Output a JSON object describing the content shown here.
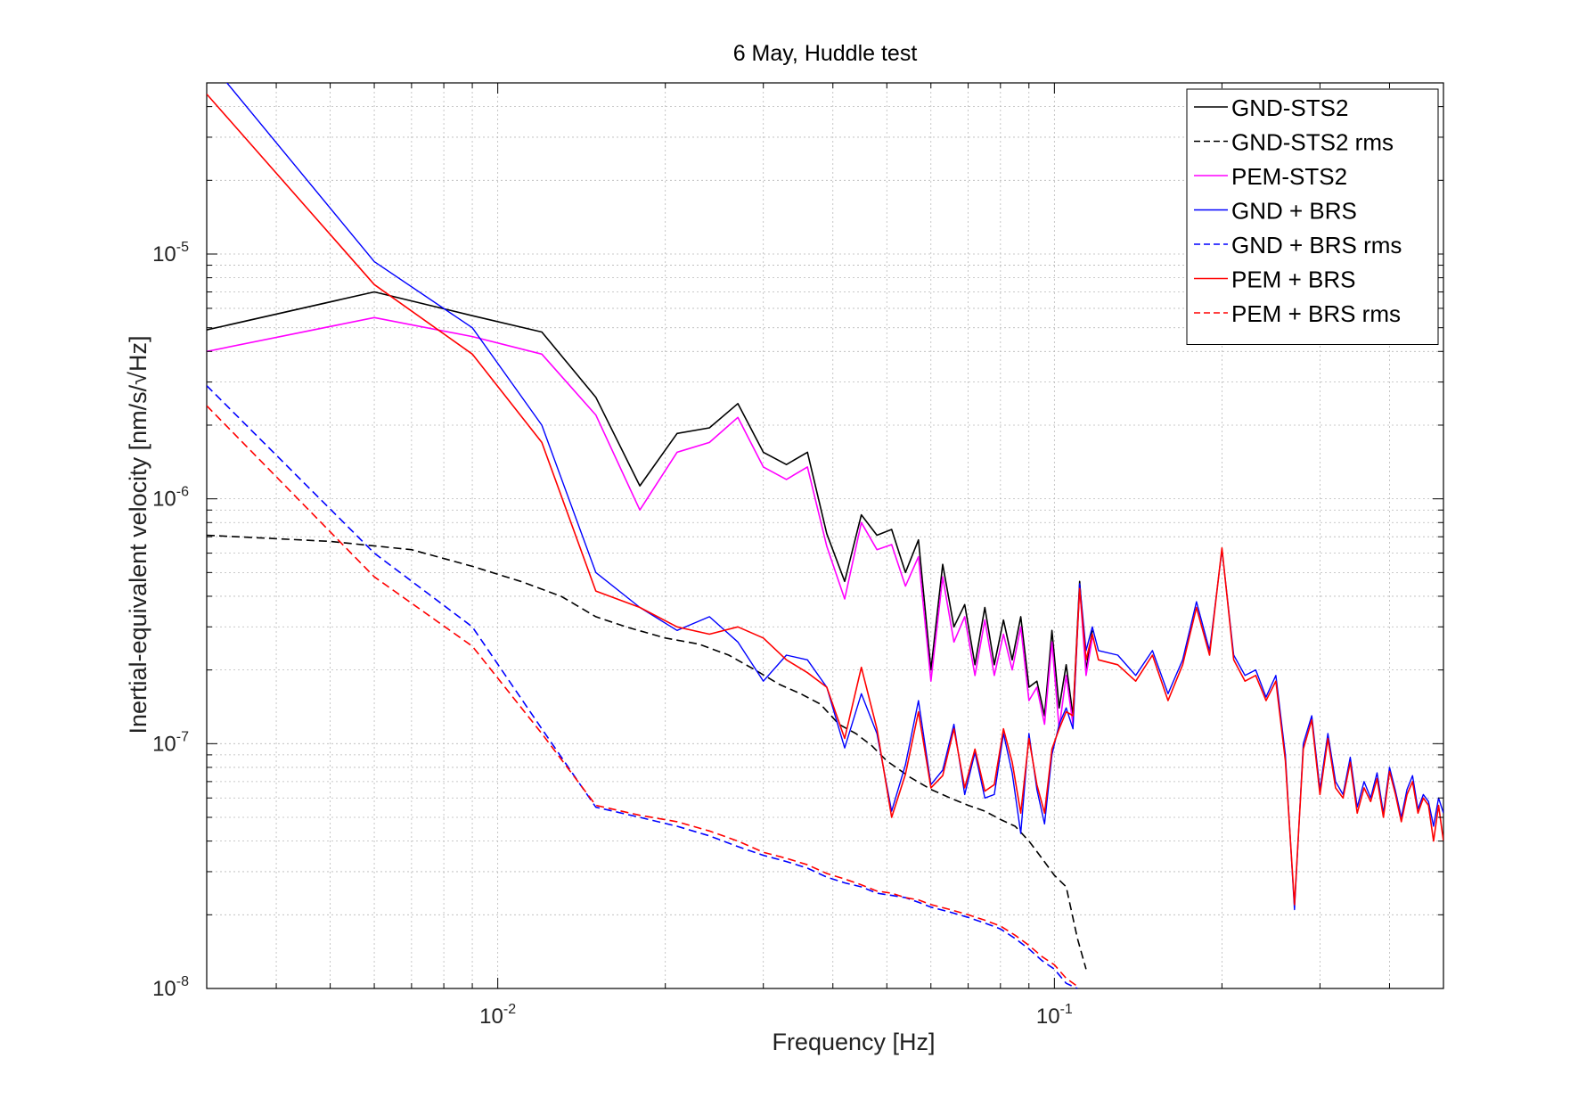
{
  "chart_data": {
    "type": "line",
    "title": "6 May, Huddle test",
    "xlabel": "Frequency [Hz]",
    "ylabel": "Inertial-equivalent velocity [nm/s/√Hz]",
    "xscale": "log",
    "yscale": "log",
    "xlim": [
      0.003,
      0.5
    ],
    "ylim": [
      1e-08,
      5e-05
    ],
    "grid": true,
    "legend_position": "top-right",
    "x_ticks": [
      {
        "value": 0.01,
        "base": "10",
        "exp": "-2"
      },
      {
        "value": 0.1,
        "base": "10",
        "exp": "-1"
      }
    ],
    "y_ticks": [
      {
        "value": 1e-08,
        "base": "10",
        "exp": "-8"
      },
      {
        "value": 1e-07,
        "base": "10",
        "exp": "-7"
      },
      {
        "value": 1e-06,
        "base": "10",
        "exp": "-6"
      },
      {
        "value": 1e-05,
        "base": "10",
        "exp": "-5"
      }
    ],
    "series": [
      {
        "name": "GND-STS2",
        "color": "#000000",
        "dash": "solid",
        "width": 1.6,
        "x": [
          0.003,
          0.006,
          0.009,
          0.012,
          0.015,
          0.018,
          0.021,
          0.024,
          0.027,
          0.03,
          0.033,
          0.036,
          0.039,
          0.042,
          0.045,
          0.048,
          0.051,
          0.054,
          0.057,
          0.06,
          0.063,
          0.066,
          0.069,
          0.072,
          0.075,
          0.078,
          0.081,
          0.084,
          0.087,
          0.09,
          0.093,
          0.096,
          0.099,
          0.102,
          0.105,
          0.108,
          0.111,
          0.114,
          0.117
        ],
        "y": [
          4.9e-06,
          7e-06,
          5.6e-06,
          4.8e-06,
          2.6e-06,
          1.13e-06,
          1.85e-06,
          1.95e-06,
          2.45e-06,
          1.55e-06,
          1.38e-06,
          1.55e-06,
          7.2e-07,
          4.6e-07,
          8.6e-07,
          7.1e-07,
          7.5e-07,
          5e-07,
          6.8e-07,
          2e-07,
          5.4e-07,
          3e-07,
          3.7e-07,
          2.1e-07,
          3.6e-07,
          2.1e-07,
          3.2e-07,
          2.2e-07,
          3.3e-07,
          1.7e-07,
          1.8e-07,
          1.3e-07,
          2.9e-07,
          1.4e-07,
          2.1e-07,
          1.3e-07,
          4.6e-07,
          2e-07,
          2.9e-07
        ]
      },
      {
        "name": "GND-STS2 rms",
        "color": "#000000",
        "dash": "dashed",
        "width": 1.6,
        "x": [
          0.003,
          0.005,
          0.007,
          0.009,
          0.011,
          0.013,
          0.015,
          0.017,
          0.02,
          0.023,
          0.026,
          0.029,
          0.032,
          0.035,
          0.038,
          0.041,
          0.044,
          0.047,
          0.05,
          0.055,
          0.06,
          0.065,
          0.07,
          0.075,
          0.08,
          0.085,
          0.09,
          0.095,
          0.1,
          0.105,
          0.11,
          0.114
        ],
        "y": [
          7.1e-07,
          6.7e-07,
          6.2e-07,
          5.3e-07,
          4.6e-07,
          4e-07,
          3.3e-07,
          3e-07,
          2.7e-07,
          2.55e-07,
          2.3e-07,
          2e-07,
          1.75e-07,
          1.6e-07,
          1.45e-07,
          1.2e-07,
          1.1e-07,
          9.8e-08,
          8.5e-08,
          7.3e-08,
          6.5e-08,
          6e-08,
          5.6e-08,
          5.3e-08,
          4.9e-08,
          4.6e-08,
          4e-08,
          3.4e-08,
          2.9e-08,
          2.6e-08,
          1.6e-08,
          1.2e-08
        ]
      },
      {
        "name": "PEM-STS2",
        "color": "#ff00ff",
        "dash": "solid",
        "width": 1.6,
        "x": [
          0.003,
          0.006,
          0.009,
          0.012,
          0.015,
          0.018,
          0.021,
          0.024,
          0.027,
          0.03,
          0.033,
          0.036,
          0.039,
          0.042,
          0.045,
          0.048,
          0.051,
          0.054,
          0.057,
          0.06,
          0.063,
          0.066,
          0.069,
          0.072,
          0.075,
          0.078,
          0.081,
          0.084,
          0.087,
          0.09,
          0.093,
          0.096,
          0.099,
          0.102,
          0.105,
          0.108,
          0.111,
          0.114,
          0.117
        ],
        "y": [
          4e-06,
          5.5e-06,
          4.6e-06,
          3.9e-06,
          2.2e-06,
          9e-07,
          1.55e-06,
          1.7e-06,
          2.15e-06,
          1.35e-06,
          1.2e-06,
          1.35e-06,
          6.4e-07,
          3.9e-07,
          8e-07,
          6.2e-07,
          6.5e-07,
          4.4e-07,
          5.8e-07,
          1.8e-07,
          4.8e-07,
          2.6e-07,
          3.3e-07,
          1.9e-07,
          3.2e-07,
          1.9e-07,
          2.8e-07,
          2e-07,
          3e-07,
          1.5e-07,
          1.7e-07,
          1.2e-07,
          2.6e-07,
          1.15e-07,
          1.9e-07,
          1.2e-07,
          4.4e-07,
          1.9e-07,
          2.7e-07
        ]
      },
      {
        "name": "GND + BRS",
        "color": "#0000ff",
        "dash": "solid",
        "width": 1.4,
        "x": [
          0.003,
          0.006,
          0.009,
          0.012,
          0.015,
          0.018,
          0.021,
          0.024,
          0.027,
          0.03,
          0.033,
          0.036,
          0.039,
          0.042,
          0.045,
          0.048,
          0.051,
          0.054,
          0.057,
          0.06,
          0.063,
          0.066,
          0.069,
          0.072,
          0.075,
          0.078,
          0.081,
          0.084,
          0.087,
          0.09,
          0.093,
          0.096,
          0.099,
          0.102,
          0.105,
          0.108,
          0.111,
          0.114,
          0.117,
          0.12,
          0.13,
          0.14,
          0.15,
          0.16,
          0.17,
          0.18,
          0.19,
          0.2,
          0.21,
          0.22,
          0.23,
          0.24,
          0.25,
          0.26,
          0.27,
          0.28,
          0.29,
          0.3,
          0.31,
          0.32,
          0.33,
          0.34,
          0.35,
          0.36,
          0.37,
          0.38,
          0.39,
          0.4,
          0.41,
          0.42,
          0.43,
          0.44,
          0.45,
          0.46,
          0.47,
          0.48,
          0.49,
          0.5
        ],
        "y": [
          6.3e-05,
          9.3e-06,
          5e-06,
          2e-06,
          5e-07,
          3.6e-07,
          2.9e-07,
          3.3e-07,
          2.6e-07,
          1.8e-07,
          2.3e-07,
          2.2e-07,
          1.7e-07,
          9.6e-08,
          1.6e-07,
          1.1e-07,
          5.3e-08,
          8.2e-08,
          1.5e-07,
          6.8e-08,
          7.8e-08,
          1.2e-07,
          6.2e-08,
          9.2e-08,
          6e-08,
          6.2e-08,
          1.1e-07,
          7.6e-08,
          4.3e-08,
          1.1e-07,
          6.5e-08,
          4.7e-08,
          9e-08,
          1.2e-07,
          1.4e-07,
          1.15e-07,
          4.5e-07,
          2.4e-07,
          3e-07,
          2.4e-07,
          2.3e-07,
          1.9e-07,
          2.4e-07,
          1.6e-07,
          2.2e-07,
          3.8e-07,
          2.4e-07,
          6.2e-07,
          2.3e-07,
          1.9e-07,
          2e-07,
          1.55e-07,
          1.9e-07,
          9e-08,
          2.1e-08,
          1e-07,
          1.3e-07,
          6.5e-08,
          1.1e-07,
          7e-08,
          6.2e-08,
          8.8e-08,
          5.5e-08,
          7e-08,
          6e-08,
          7.6e-08,
          5.2e-08,
          8e-08,
          6.4e-08,
          5e-08,
          6.5e-08,
          7.4e-08,
          5.4e-08,
          6.2e-08,
          5.8e-08,
          4.6e-08,
          6e-08,
          5.2e-08
        ]
      },
      {
        "name": "GND + BRS rms",
        "color": "#0000ff",
        "dash": "dashed",
        "width": 1.6,
        "x": [
          0.003,
          0.006,
          0.009,
          0.012,
          0.015,
          0.018,
          0.021,
          0.024,
          0.027,
          0.03,
          0.033,
          0.036,
          0.039,
          0.042,
          0.045,
          0.048,
          0.051,
          0.054,
          0.057,
          0.06,
          0.065,
          0.07,
          0.075,
          0.08,
          0.085,
          0.09,
          0.095,
          0.1,
          0.105,
          0.11
        ],
        "y": [
          2.9e-06,
          6e-07,
          3e-07,
          1.15e-07,
          5.5e-08,
          5e-08,
          4.6e-08,
          4.2e-08,
          3.8e-08,
          3.5e-08,
          3.3e-08,
          3.1e-08,
          2.85e-08,
          2.7e-08,
          2.6e-08,
          2.45e-08,
          2.4e-08,
          2.35e-08,
          2.25e-08,
          2.15e-08,
          2.05e-08,
          1.95e-08,
          1.85e-08,
          1.75e-08,
          1.6e-08,
          1.45e-08,
          1.3e-08,
          1.2e-08,
          1.05e-08,
          1e-08
        ]
      },
      {
        "name": "PEM + BRS",
        "color": "#ff0000",
        "dash": "solid",
        "width": 1.6,
        "x": [
          0.003,
          0.006,
          0.009,
          0.012,
          0.015,
          0.018,
          0.021,
          0.024,
          0.027,
          0.03,
          0.033,
          0.036,
          0.039,
          0.042,
          0.045,
          0.048,
          0.051,
          0.054,
          0.057,
          0.06,
          0.063,
          0.066,
          0.069,
          0.072,
          0.075,
          0.078,
          0.081,
          0.084,
          0.087,
          0.09,
          0.093,
          0.096,
          0.099,
          0.102,
          0.105,
          0.108,
          0.111,
          0.114,
          0.117,
          0.12,
          0.13,
          0.14,
          0.15,
          0.16,
          0.17,
          0.18,
          0.19,
          0.2,
          0.21,
          0.22,
          0.23,
          0.24,
          0.25,
          0.26,
          0.27,
          0.28,
          0.29,
          0.3,
          0.31,
          0.32,
          0.33,
          0.34,
          0.35,
          0.36,
          0.37,
          0.38,
          0.39,
          0.4,
          0.41,
          0.42,
          0.43,
          0.44,
          0.45,
          0.46,
          0.47,
          0.48,
          0.49,
          0.5
        ],
        "y": [
          4.5e-05,
          7.5e-06,
          3.9e-06,
          1.7e-06,
          4.2e-07,
          3.6e-07,
          3e-07,
          2.8e-07,
          3e-07,
          2.7e-07,
          2.2e-07,
          1.95e-07,
          1.7e-07,
          1.05e-07,
          2.05e-07,
          1.15e-07,
          5e-08,
          7.5e-08,
          1.35e-07,
          6.6e-08,
          7.4e-08,
          1.15e-07,
          6.6e-08,
          9.5e-08,
          6.4e-08,
          6.8e-08,
          1.15e-07,
          8.4e-08,
          5.2e-08,
          1.05e-07,
          6.8e-08,
          5.2e-08,
          9.5e-08,
          1.15e-07,
          1.35e-07,
          1.3e-07,
          4.3e-07,
          2.2e-07,
          2.8e-07,
          2.2e-07,
          2.1e-07,
          1.8e-07,
          2.3e-07,
          1.5e-07,
          2.1e-07,
          3.6e-07,
          2.3e-07,
          6.3e-07,
          2.2e-07,
          1.8e-07,
          1.9e-07,
          1.5e-07,
          1.8e-07,
          8.5e-08,
          2.2e-08,
          9.5e-08,
          1.25e-07,
          6.2e-08,
          1.05e-07,
          6.6e-08,
          6e-08,
          8.4e-08,
          5.2e-08,
          6.6e-08,
          5.8e-08,
          7.2e-08,
          5e-08,
          7.7e-08,
          6.2e-08,
          4.8e-08,
          6.2e-08,
          7e-08,
          5.2e-08,
          6e-08,
          5.6e-08,
          4e-08,
          5.6e-08,
          4e-08
        ]
      },
      {
        "name": "PEM + BRS rms",
        "color": "#ff0000",
        "dash": "dashed",
        "width": 1.6,
        "x": [
          0.003,
          0.006,
          0.009,
          0.012,
          0.015,
          0.018,
          0.021,
          0.024,
          0.027,
          0.03,
          0.033,
          0.036,
          0.039,
          0.042,
          0.045,
          0.048,
          0.051,
          0.054,
          0.057,
          0.06,
          0.065,
          0.07,
          0.075,
          0.08,
          0.085,
          0.09,
          0.095,
          0.1,
          0.105,
          0.11
        ],
        "y": [
          2.4e-06,
          4.8e-07,
          2.5e-07,
          1.1e-07,
          5.6e-08,
          5.1e-08,
          4.8e-08,
          4.4e-08,
          4e-08,
          3.6e-08,
          3.4e-08,
          3.2e-08,
          2.95e-08,
          2.8e-08,
          2.65e-08,
          2.5e-08,
          2.45e-08,
          2.35e-08,
          2.3e-08,
          2.2e-08,
          2.1e-08,
          2e-08,
          1.9e-08,
          1.8e-08,
          1.65e-08,
          1.5e-08,
          1.35e-08,
          1.25e-08,
          1.1e-08,
          1.02e-08
        ]
      }
    ]
  }
}
